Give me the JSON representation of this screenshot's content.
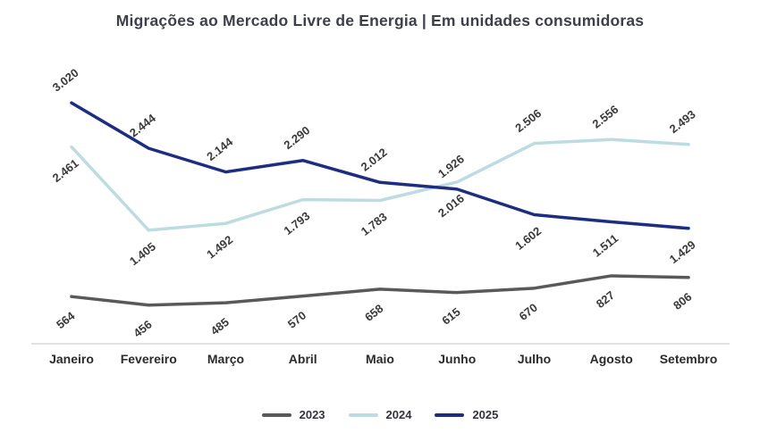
{
  "chart_data": {
    "type": "line",
    "title": "Migrações ao Mercado Livre de Energia | Em unidades consumidoras",
    "categories": [
      "Janeiro",
      "Fevereiro",
      "Março",
      "Abril",
      "Maio",
      "Junho",
      "Julho",
      "Agosto",
      "Setembro"
    ],
    "series": [
      {
        "name": "2023",
        "color": "#595959",
        "values": [
          564,
          456,
          485,
          570,
          658,
          615,
          670,
          827,
          806
        ],
        "labels": [
          "564",
          "456",
          "485",
          "570",
          "658",
          "615",
          "670",
          "827",
          "806"
        ],
        "label_side": [
          "below",
          "below",
          "below",
          "below",
          "below",
          "below",
          "below",
          "below",
          "below"
        ]
      },
      {
        "name": "2024",
        "color": "#BDDCE1",
        "values": [
          2461,
          1405,
          1492,
          1793,
          1783,
          2016,
          2506,
          2556,
          2493
        ],
        "labels": [
          "2.461",
          "1.405",
          "1.492",
          "1.793",
          "1.783",
          "2.016",
          "2.506",
          "2.556",
          "2.493"
        ],
        "label_side": [
          "below",
          "below",
          "below",
          "below",
          "below",
          "below",
          "above",
          "above",
          "above"
        ]
      },
      {
        "name": "2025",
        "color": "#1C2D82",
        "values": [
          3020,
          2444,
          2144,
          2290,
          2012,
          1926,
          1602,
          1511,
          1429
        ],
        "labels": [
          "3.020",
          "2.444",
          "2.144",
          "2.290",
          "2.012",
          "1.926",
          "1.602",
          "1.511",
          "1.429"
        ],
        "label_side": [
          "above",
          "above",
          "above",
          "above",
          "above",
          "above",
          "below",
          "below",
          "below"
        ]
      }
    ],
    "ylim": [
      0,
      3600
    ],
    "grid": false,
    "legend_position": "bottom",
    "axis_line_color": "#D9D9D9",
    "background_color": "#FFFFFF"
  }
}
